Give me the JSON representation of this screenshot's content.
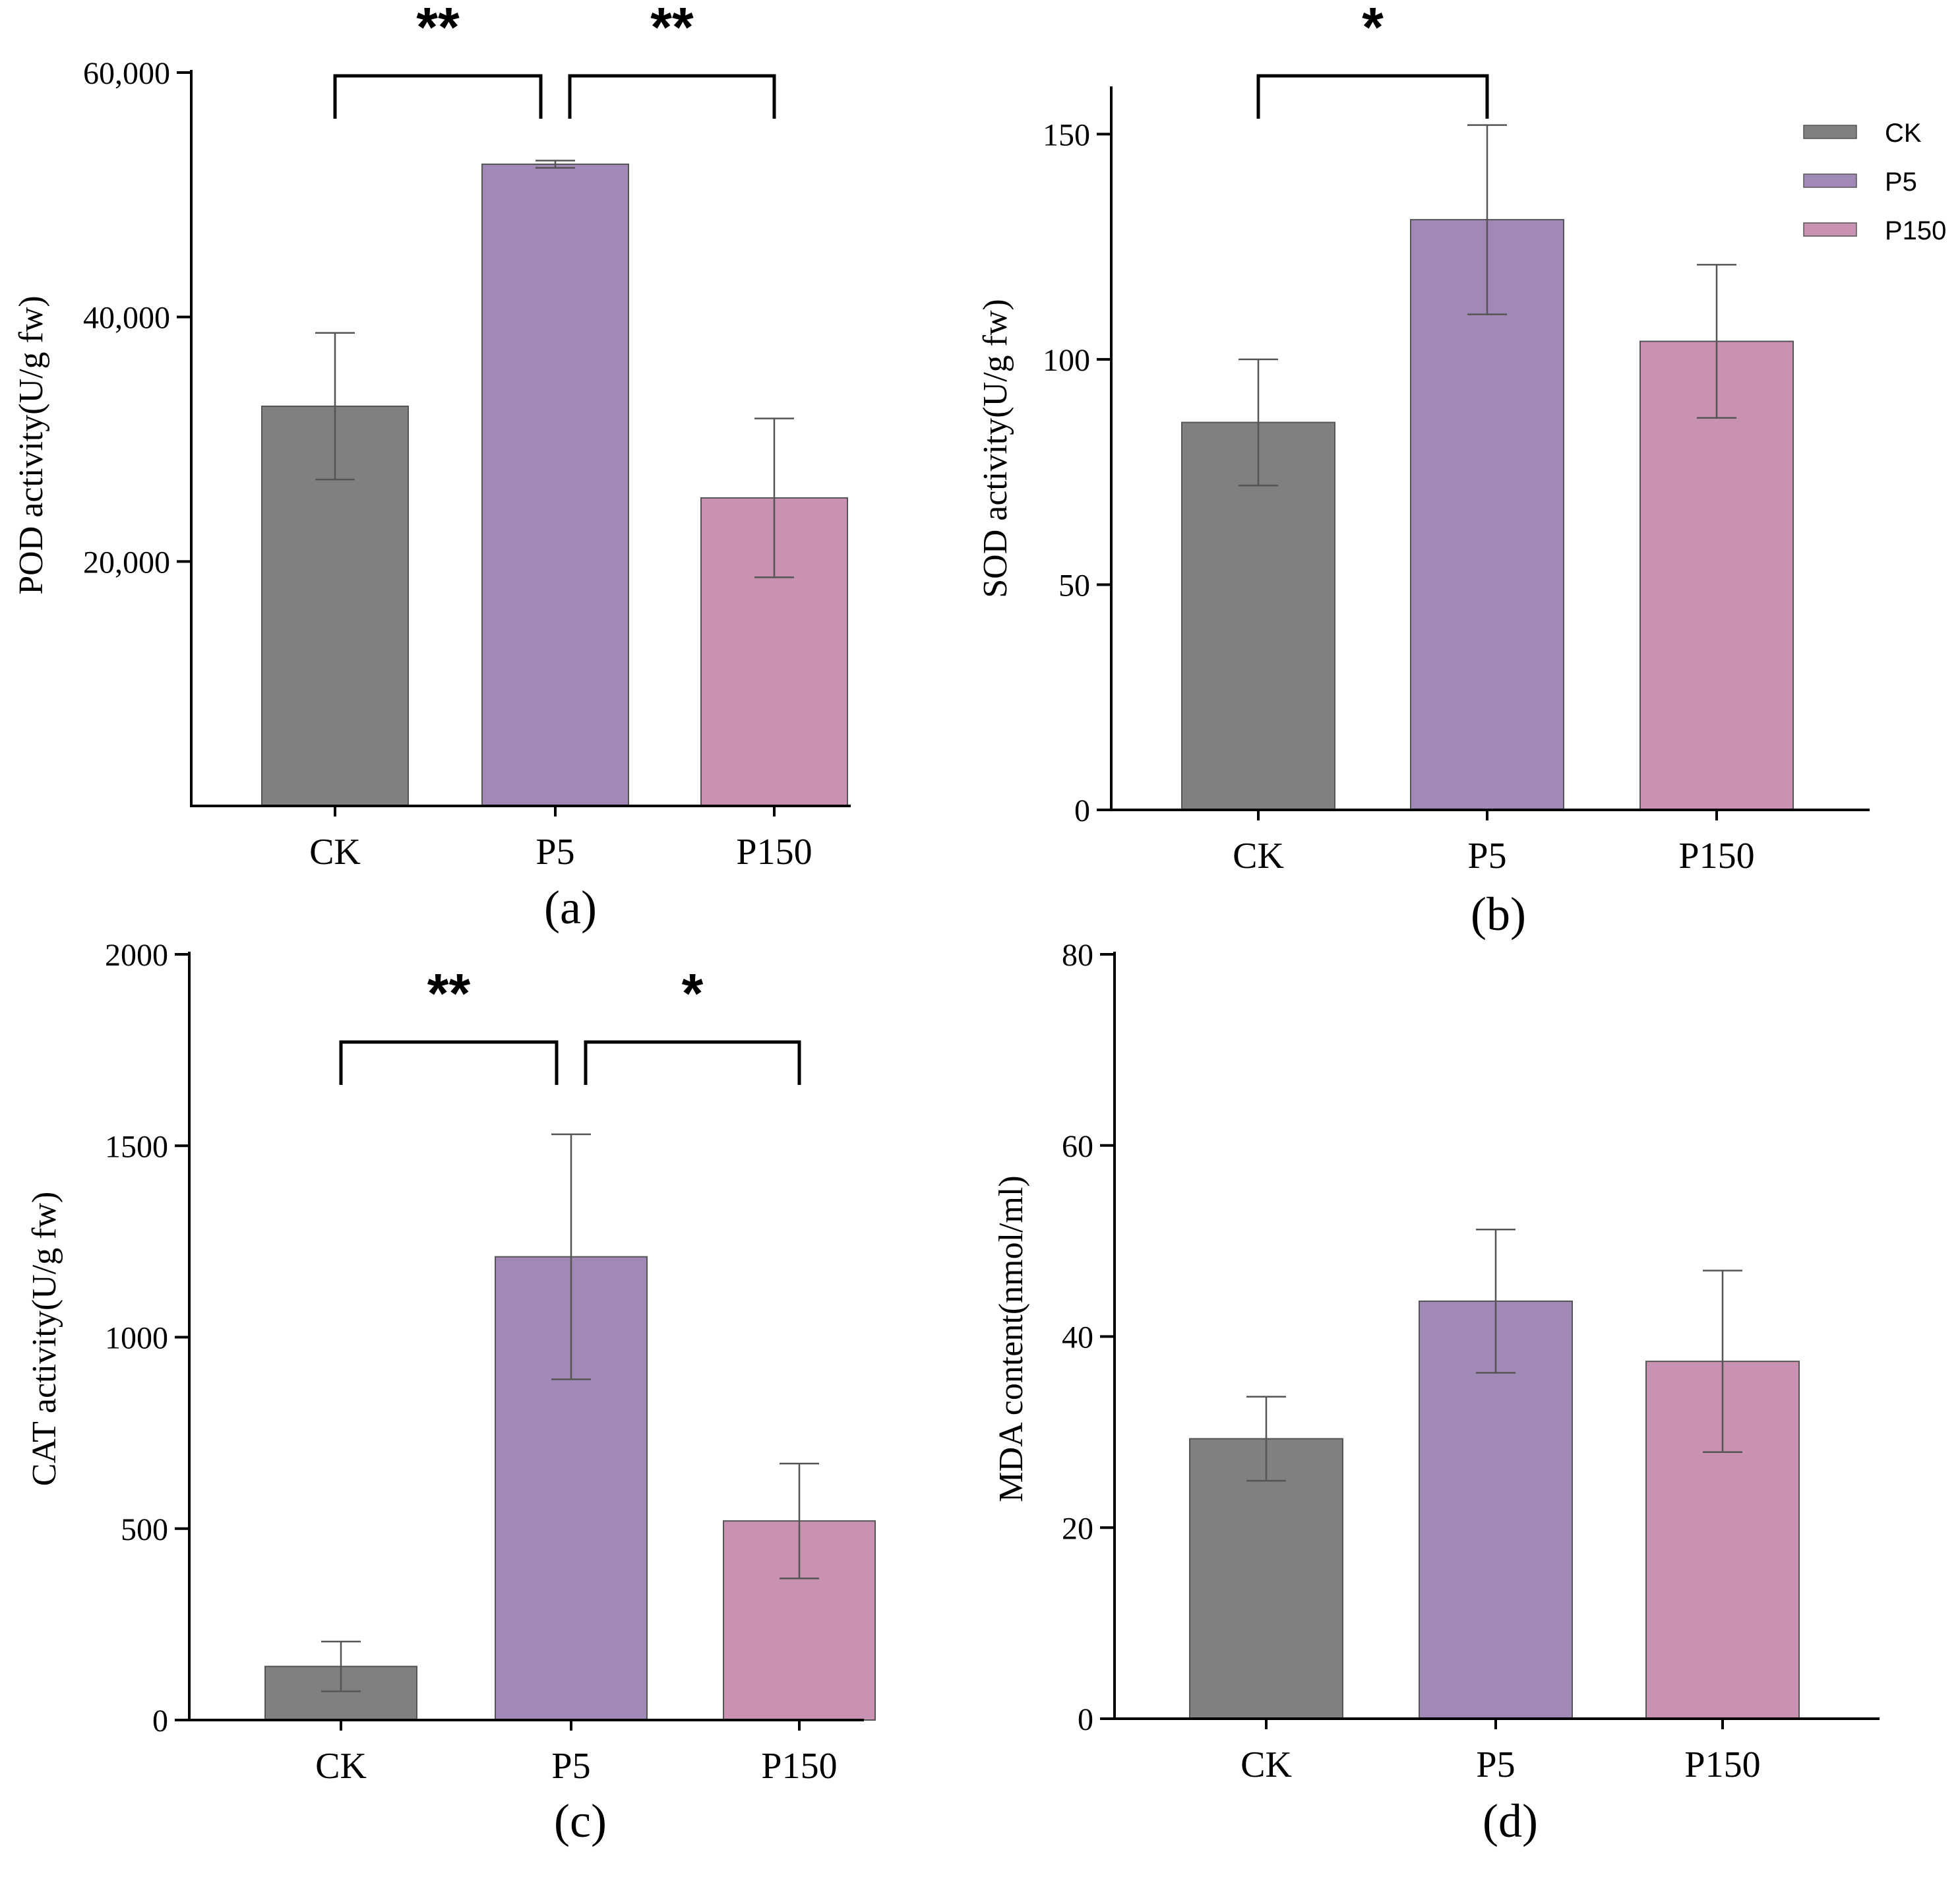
{
  "colors": {
    "CK": "#808080",
    "P5": "#a088b7",
    "P150": "#c992b2",
    "axis": "#000000",
    "error_bar": "#555555"
  },
  "legend": {
    "placement": "top-right of panel (b)",
    "entries": [
      "CK",
      "P5",
      "P150"
    ]
  },
  "chart_data": [
    {
      "panel": "(a)",
      "type": "bar",
      "categories": [
        "CK",
        "P5",
        "P150"
      ],
      "values": [
        32700,
        52500,
        25200
      ],
      "error": [
        6000,
        300,
        6500
      ],
      "ylabel": "POD activity(U/g fw)",
      "ylim": [
        0,
        60000
      ],
      "yticks": [
        20000,
        40000,
        60000
      ],
      "ytick_labels": [
        "20,000",
        "40,000",
        "60,000"
      ],
      "significance": [
        {
          "from": "CK",
          "to": "P5",
          "label": "**"
        },
        {
          "from": "P5",
          "to": "P150",
          "label": "**"
        }
      ],
      "grid": false
    },
    {
      "panel": "(b)",
      "type": "bar",
      "categories": [
        "CK",
        "P5",
        "P150"
      ],
      "values": [
        86,
        131,
        104
      ],
      "error": [
        14,
        21,
        17
      ],
      "ylabel": "SOD activity(U/g fw)",
      "ylim": [
        0,
        160
      ],
      "yticks": [
        0,
        50,
        100,
        150
      ],
      "ytick_labels": [
        "0",
        "50",
        "100",
        "150"
      ],
      "significance": [
        {
          "from": "CK",
          "to": "P5",
          "label": "*"
        }
      ],
      "grid": false
    },
    {
      "panel": "(c)",
      "type": "bar",
      "categories": [
        "CK",
        "P5",
        "P150"
      ],
      "values": [
        140,
        1210,
        520
      ],
      "error": [
        65,
        320,
        150
      ],
      "ylabel": "CAT activity(U/g fw)",
      "ylim": [
        0,
        2000
      ],
      "yticks": [
        0,
        500,
        1000,
        1500,
        2000
      ],
      "ytick_labels": [
        "0",
        "500",
        "1000",
        "1500",
        "2000"
      ],
      "significance": [
        {
          "from": "CK",
          "to": "P5",
          "label": "**"
        },
        {
          "from": "P5",
          "to": "P150",
          "label": "*"
        }
      ],
      "grid": false
    },
    {
      "panel": "(d)",
      "type": "bar",
      "categories": [
        "CK",
        "P5",
        "P150"
      ],
      "values": [
        29.3,
        43.7,
        37.4
      ],
      "error": [
        4.4,
        7.5,
        9.5
      ],
      "ylabel": "MDA content(nmol/ml)",
      "ylim": [
        0,
        80
      ],
      "yticks": [
        0,
        20,
        40,
        60,
        80
      ],
      "ytick_labels": [
        "0",
        "20",
        "40",
        "60",
        "80"
      ],
      "significance": [],
      "grid": false
    }
  ]
}
